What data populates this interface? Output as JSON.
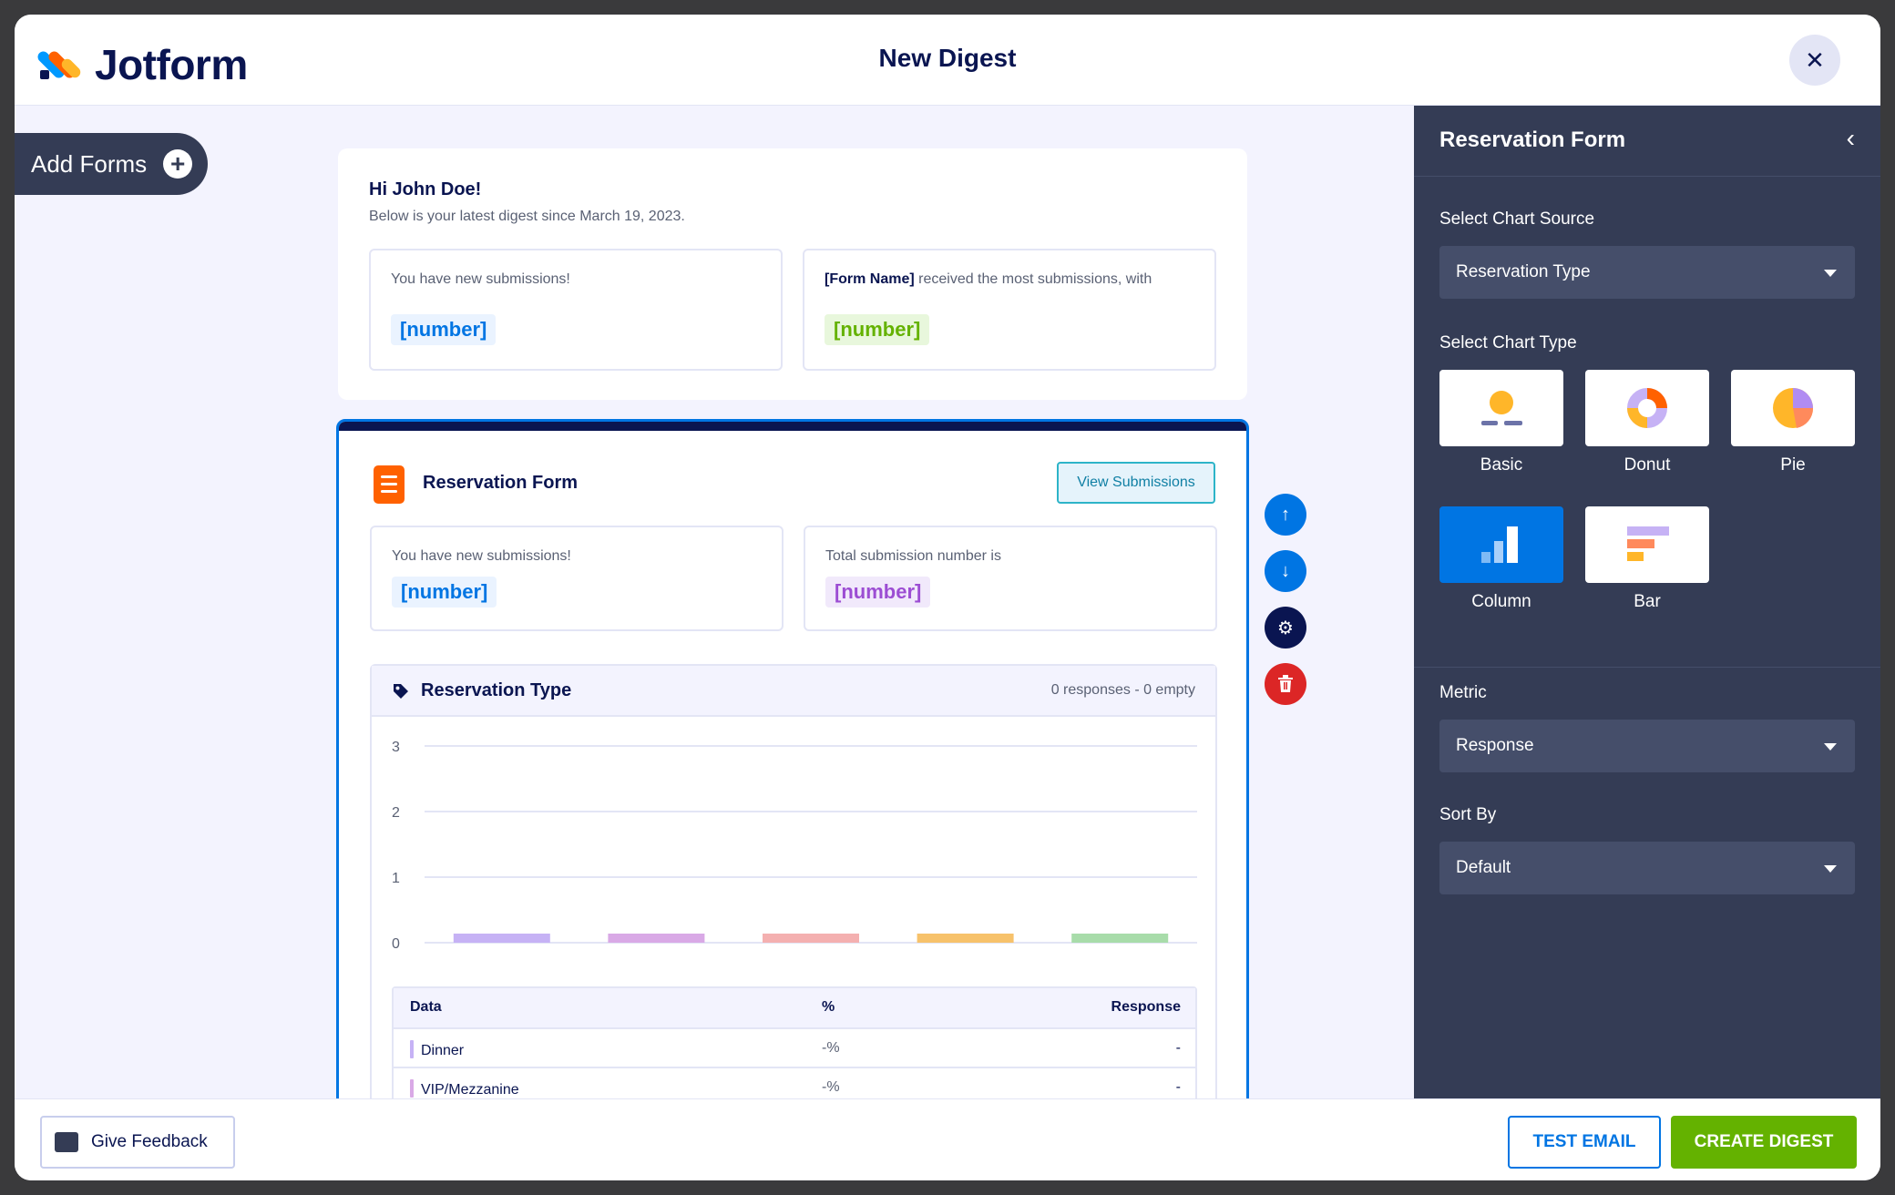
{
  "header": {
    "brand": "Jotform",
    "title": "New Digest",
    "close_symbol": "✕"
  },
  "add_forms": {
    "label": "Add Forms",
    "icon": "plus-icon"
  },
  "greeting": {
    "title": "Hi John Doe!",
    "subtitle": "Below is your latest digest since March 19, 2023.",
    "card_left": {
      "text": "You have new submissions!",
      "value": "[number]"
    },
    "card_right": {
      "form_name": "[Form Name]",
      "text": " received the most submissions, with",
      "value": "[number]"
    }
  },
  "form_section": {
    "name": "Reservation Form",
    "view_button": "View Submissions",
    "card_left": {
      "text": "You have new submissions!",
      "value": "[number]"
    },
    "card_right": {
      "text": "Total submission number is",
      "value": "[number]"
    },
    "chart_title": "Reservation Type",
    "chart_meta": "0 responses - 0 empty",
    "table": {
      "headers": [
        "Data",
        "%",
        "Response"
      ],
      "rows": [
        {
          "data": "Dinner",
          "pct": "-%",
          "response": "-",
          "color": "#c6b2f5"
        },
        {
          "data": "VIP/Mezzanine",
          "pct": "-%",
          "response": "-",
          "color": "#d9a9e6"
        }
      ]
    }
  },
  "chart_data": {
    "type": "bar",
    "categories": [
      "Dinner",
      "VIP/Mezzanine",
      "",
      "",
      ""
    ],
    "values": [
      0,
      0,
      0,
      0,
      0
    ],
    "colors": [
      "#c6b2f5",
      "#d9a9e6",
      "#f4b0b0",
      "#f7c26b",
      "#a8dcaa"
    ],
    "yticks": [
      "0",
      "1",
      "2",
      "3"
    ],
    "ylim": [
      0,
      3
    ],
    "grid": true
  },
  "side_actions": [
    {
      "name": "move-up-button",
      "symbol": "↑",
      "color": "#0075e3"
    },
    {
      "name": "move-down-button",
      "symbol": "↓",
      "color": "#0075e3"
    },
    {
      "name": "settings-button",
      "symbol": "⚙",
      "color": "#0a1551"
    },
    {
      "name": "delete-button",
      "symbol": "🗑",
      "color": "#dc2626"
    }
  ],
  "panel": {
    "title": "Reservation Form",
    "back_symbol": "‹",
    "source_label": "Select Chart Source",
    "source_value": "Reservation Type",
    "type_label": "Select Chart Type",
    "chart_types": [
      "Basic",
      "Donut",
      "Pie",
      "Column",
      "Bar"
    ],
    "selected_type": "Column",
    "metric_label": "Metric",
    "metric_value": "Response",
    "sort_label": "Sort By",
    "sort_value": "Default"
  },
  "footer": {
    "feedback": "Give Feedback",
    "test_email": "TEST EMAIL",
    "create": "CREATE DIGEST"
  }
}
